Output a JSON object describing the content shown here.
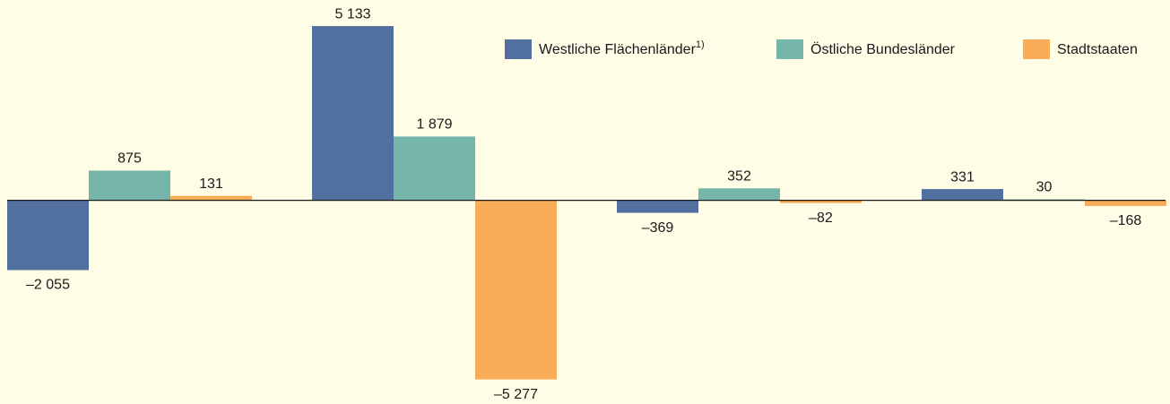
{
  "chart_data": {
    "type": "bar",
    "categories": [
      null,
      null,
      null,
      null
    ],
    "series": [
      {
        "name": "Westliche Flächenländer",
        "name_note": "1)",
        "color": "#52709f",
        "values": [
          -2055,
          5133,
          -369,
          331
        ],
        "value_labels": [
          "–2 055",
          "5 133",
          "–369",
          "331"
        ]
      },
      {
        "name": "Östliche Bundesländer",
        "color": "#75b5aa",
        "values": [
          875,
          1879,
          352,
          30
        ],
        "value_labels": [
          "875",
          "1 879",
          "352",
          "30"
        ]
      },
      {
        "name": "Stadtstaaten",
        "color": "#f9ad58",
        "values": [
          131,
          -5277,
          -82,
          -168
        ],
        "value_labels": [
          "131",
          "–5 277",
          "–82",
          "–168"
        ]
      }
    ],
    "ylim": [
      -6000,
      5900
    ],
    "legend": "top-right"
  }
}
